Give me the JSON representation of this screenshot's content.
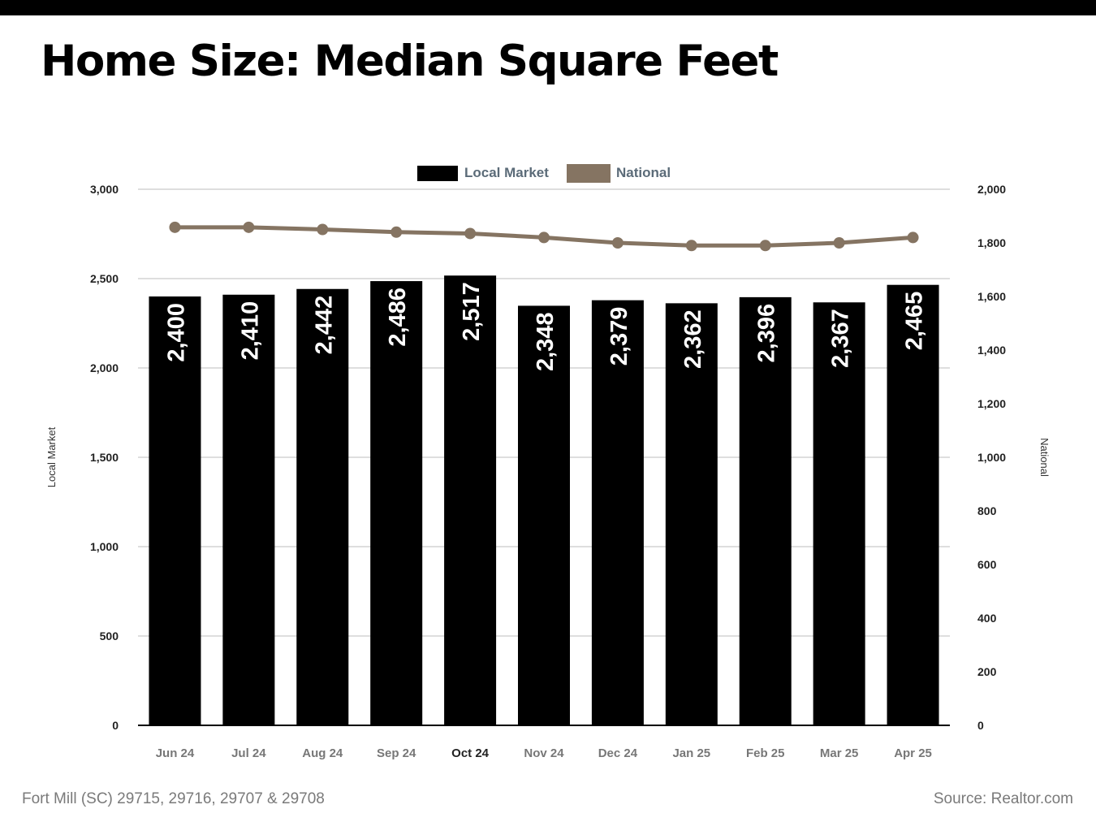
{
  "title": "Home Size: Median Square Feet",
  "footer": {
    "location": "Fort Mill (SC) 29715, 29716, 29707 & 29708",
    "source": "Source: Realtor.com"
  },
  "colors": {
    "local": "#000000",
    "national": "#857462",
    "label_text": "#ffffff",
    "legend_text": "#5b6b78",
    "tick_text": "#222222",
    "category_text": "#777777",
    "gridline": "#bdbdbd"
  },
  "chart_data": {
    "type": "bar",
    "categories": [
      "Jun 24",
      "Jul 24",
      "Aug 24",
      "Sep 24",
      "Oct 24",
      "Nov 24",
      "Dec 24",
      "Jan 25",
      "Feb 25",
      "Mar 25",
      "Apr 25"
    ],
    "highlight_category": "Oct 24",
    "series": [
      {
        "name": "Local Market",
        "type": "bar",
        "axis": "left",
        "values": [
          2400,
          2410,
          2442,
          2486,
          2517,
          2348,
          2379,
          2362,
          2396,
          2367,
          2465
        ],
        "data_labels": [
          "2,400",
          "2,410",
          "2,442",
          "2,486",
          "2,517",
          "2,348",
          "2,379",
          "2,362",
          "2,396",
          "2,367",
          "2,465"
        ]
      },
      {
        "name": "National",
        "type": "line",
        "axis": "right",
        "values": [
          1858,
          1858,
          1850,
          1840,
          1835,
          1820,
          1800,
          1790,
          1790,
          1800,
          1820
        ]
      }
    ],
    "ylabel": "Local Market",
    "y2label": "National",
    "ylim": [
      0,
      3000
    ],
    "y2lim": [
      0,
      2000
    ],
    "yticks": [
      "0",
      "500",
      "1,000",
      "1,500",
      "2,000",
      "2,500",
      "3,000"
    ],
    "y2ticks": [
      "0",
      "200",
      "400",
      "600",
      "800",
      "1,000",
      "1,200",
      "1,400",
      "1,600",
      "1,800",
      "2,000"
    ],
    "grid": true,
    "legend_position": "top-center"
  }
}
